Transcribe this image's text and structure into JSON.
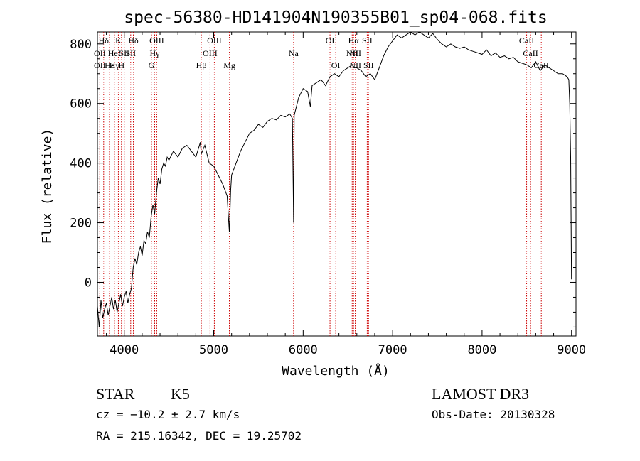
{
  "chart_data": {
    "type": "line",
    "title": "spec-56380-HD141904N190355B01_sp04-068.fits",
    "xlabel": "Wavelength (Å)",
    "ylabel": "Flux (relative)",
    "xlim": [
      3700,
      9050
    ],
    "ylim": [
      -180,
      840
    ],
    "x_ticks": [
      4000,
      5000,
      6000,
      7000,
      8000,
      9000
    ],
    "y_ticks": [
      0,
      200,
      400,
      600,
      800
    ],
    "grid": false,
    "line_color": "#000000",
    "marker_color": "#cc0000",
    "series": [
      {
        "x": [
          3700,
          3720,
          3740,
          3760,
          3780,
          3800,
          3820,
          3840,
          3860,
          3880,
          3900,
          3920,
          3940,
          3960,
          3980,
          4000,
          4020,
          4040,
          4060,
          4080,
          4100,
          4120,
          4140,
          4160,
          4180,
          4200,
          4220,
          4240,
          4260,
          4280,
          4300,
          4320,
          4340,
          4360,
          4380,
          4400,
          4420,
          4440,
          4460,
          4480,
          4500,
          4550,
          4600,
          4650,
          4700,
          4750,
          4800,
          4850,
          4861,
          4900,
          4950,
          5000,
          5050,
          5100,
          5150,
          5175,
          5190,
          5200,
          5250,
          5300,
          5350,
          5400,
          5450,
          5500,
          5550,
          5600,
          5650,
          5700,
          5750,
          5800,
          5850,
          5880,
          5893,
          5900,
          5950,
          6000,
          6050,
          6080,
          6100,
          6150,
          6200,
          6250,
          6300,
          6350,
          6400,
          6450,
          6500,
          6550,
          6563,
          6600,
          6650,
          6700,
          6750,
          6800,
          6850,
          6900,
          6950,
          7000,
          7050,
          7100,
          7150,
          7200,
          7250,
          7300,
          7350,
          7400,
          7450,
          7500,
          7550,
          7600,
          7650,
          7700,
          7750,
          7800,
          7850,
          7900,
          7950,
          8000,
          8050,
          8100,
          8150,
          8200,
          8250,
          8300,
          8350,
          8400,
          8450,
          8500,
          8550,
          8600,
          8650,
          8700,
          8750,
          8800,
          8850,
          8900,
          8950,
          8970,
          8980,
          8990,
          9000
        ],
        "y": [
          -80,
          -150,
          -60,
          -120,
          -90,
          -70,
          -110,
          -80,
          -50,
          -90,
          -60,
          -100,
          -70,
          -40,
          -80,
          -50,
          -30,
          -70,
          -40,
          -20,
          50,
          80,
          60,
          100,
          120,
          90,
          140,
          130,
          170,
          150,
          220,
          260,
          230,
          300,
          350,
          330,
          380,
          400,
          390,
          420,
          410,
          440,
          420,
          450,
          460,
          440,
          420,
          470,
          430,
          460,
          400,
          390,
          360,
          330,
          290,
          170,
          310,
          360,
          400,
          440,
          470,
          500,
          510,
          530,
          520,
          540,
          550,
          545,
          560,
          555,
          565,
          550,
          200,
          560,
          620,
          650,
          640,
          590,
          660,
          670,
          680,
          660,
          690,
          700,
          690,
          710,
          720,
          730,
          720,
          720,
          710,
          690,
          700,
          680,
          720,
          760,
          790,
          810,
          830,
          820,
          830,
          840,
          830,
          840,
          830,
          820,
          835,
          815,
          800,
          790,
          800,
          790,
          785,
          790,
          780,
          775,
          770,
          765,
          780,
          760,
          770,
          755,
          760,
          750,
          755,
          740,
          735,
          730,
          720,
          740,
          710,
          730,
          720,
          710,
          700,
          700,
          690,
          680,
          600,
          420,
          10
        ]
      }
    ],
    "line_markers": [
      {
        "label": "Hδ",
        "x": 3770,
        "row": 0
      },
      {
        "label": "OII",
        "x": 3727,
        "row": 1
      },
      {
        "label": "OII",
        "x": 3727,
        "row": 2
      },
      {
        "label": "K",
        "x": 3934,
        "row": 0
      },
      {
        "label": "Hε",
        "x": 3835,
        "row": 2
      },
      {
        "label": "HeI",
        "x": 3889,
        "row": 1
      },
      {
        "label": "Hγ",
        "x": 3889,
        "row": 2
      },
      {
        "label": "SII",
        "x": 4000,
        "row": 1
      },
      {
        "label": "H",
        "x": 3969,
        "row": 2
      },
      {
        "label": "Hδ",
        "x": 4102,
        "row": 0
      },
      {
        "label": "SII",
        "x": 4072,
        "row": 1
      },
      {
        "label": "OIII",
        "x": 4363,
        "row": 0
      },
      {
        "label": "Hγ",
        "x": 4340,
        "row": 1
      },
      {
        "label": "G",
        "x": 4304,
        "row": 2
      },
      {
        "label": "Hβ",
        "x": 4861,
        "row": 2
      },
      {
        "label": "OIII",
        "x": 5007,
        "row": 0
      },
      {
        "label": "OIII",
        "x": 4959,
        "row": 1
      },
      {
        "label": "Mg",
        "x": 5175,
        "row": 2
      },
      {
        "label": "Na",
        "x": 5893,
        "row": 1
      },
      {
        "label": "OI",
        "x": 6300,
        "row": 0
      },
      {
        "label": "OI",
        "x": 6364,
        "row": 2
      },
      {
        "label": "Hα",
        "x": 6563,
        "row": 0
      },
      {
        "label": "NII",
        "x": 6548,
        "row": 1
      },
      {
        "label": "NII",
        "x": 6583,
        "row": 2
      },
      {
        "label": "SII",
        "x": 6716,
        "row": 0
      },
      {
        "label": "NII",
        "x": 6583,
        "row": 1
      },
      {
        "label": "SII",
        "x": 6731,
        "row": 2
      },
      {
        "label": "CaII",
        "x": 8498,
        "row": 0
      },
      {
        "label": "CaII",
        "x": 8542,
        "row": 1
      },
      {
        "label": "CaII",
        "x": 8662,
        "row": 2
      }
    ]
  },
  "info": {
    "object_class": "STAR",
    "subclass": "K5",
    "survey": "LAMOST DR3",
    "cz": "cz = −10.2 ± 2.7 km/s",
    "obs_date": "Obs-Date: 20130328",
    "coords": "RA = 215.16342, DEC =  19.25702"
  }
}
